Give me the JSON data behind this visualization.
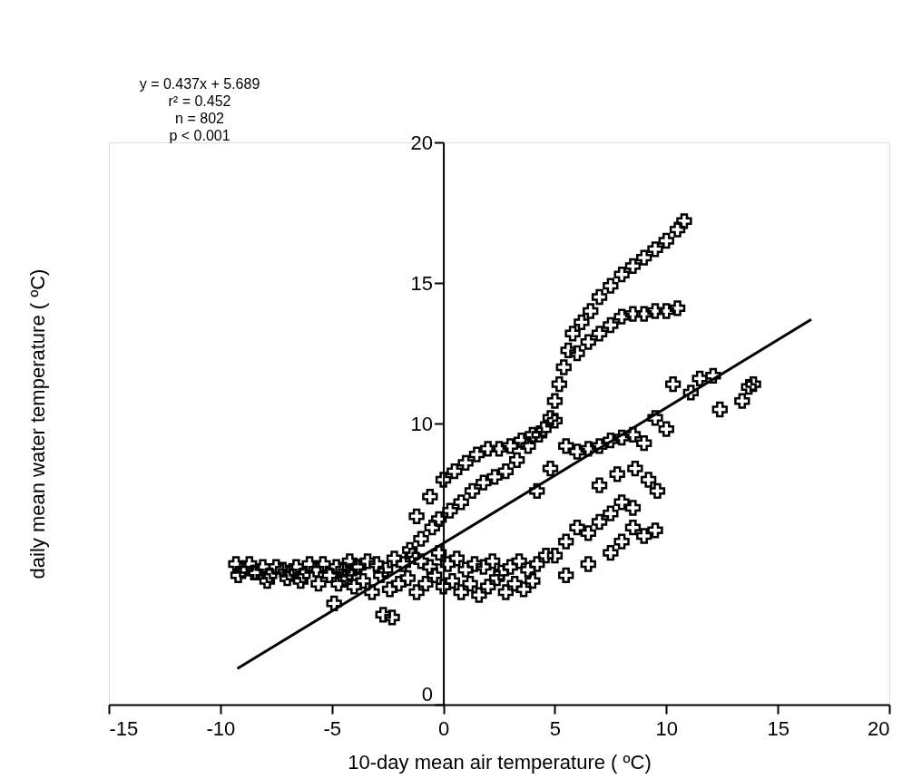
{
  "chart_data": {
    "type": "scatter",
    "xlabel": "10-day mean air temperature ( ºC)",
    "ylabel": "daily mean water temperature ( ºC)",
    "xlim": [
      -15,
      20
    ],
    "ylim": [
      0,
      20
    ],
    "xticks": [
      -15,
      -10,
      -5,
      0,
      5,
      10,
      15,
      20
    ],
    "yticks": [
      {
        "value": 0,
        "label": "0"
      },
      {
        "value": 5,
        "label": null
      },
      {
        "value": 15,
        "label": "15"
      },
      {
        "value": 10,
        "label": "10"
      },
      {
        "value": 20,
        "label": "20"
      }
    ],
    "grid": false,
    "annotations": [
      "y = 0.437x + 5.689",
      "r² = 0.452",
      "n = 802",
      "p < 0.001"
    ],
    "series": [
      {
        "color": "#000000",
        "marker": "cross",
        "x": [
          -9.3,
          -9.0,
          -8.7,
          -8.4,
          -8.1,
          -7.8,
          -7.5,
          -7.2,
          -6.9,
          -6.6,
          -6.3,
          -6.0,
          -5.7,
          -5.4,
          -5.1,
          -4.8,
          -4.5,
          -4.2,
          -3.9,
          -9.2,
          -8.5,
          -7.9,
          -7.0,
          -6.4,
          -5.6,
          -4.9,
          -4.7,
          -4.4,
          -4.0,
          -3.6,
          -3.2,
          -2.8,
          -2.4,
          -2.0,
          -1.6,
          -1.2,
          -0.8,
          -0.4,
          0.0,
          0.4,
          0.8,
          1.2,
          1.6,
          2.0,
          2.4,
          2.8,
          3.2,
          3.6,
          4.0,
          -4.2,
          -3.8,
          -3.4,
          -3.0,
          -2.6,
          -2.2,
          -1.8,
          -1.4,
          -1.0,
          -0.6,
          -0.2,
          0.2,
          0.6,
          1.0,
          1.4,
          1.8,
          2.2,
          2.6,
          3.0,
          3.4,
          3.8,
          4.2,
          4.6,
          -2.7,
          -2.3,
          -1.5,
          -1.0,
          -0.5,
          -0.2,
          0.3,
          0.8,
          1.3,
          1.8,
          2.3,
          2.8,
          3.3,
          3.8,
          4.3,
          4.8,
          5.0,
          5.2,
          5.4,
          5.6,
          5.8,
          6.2,
          6.6,
          7.0,
          7.5,
          8.0,
          8.5,
          9.0,
          9.5,
          10.0,
          10.5,
          10.8,
          6.0,
          6.5,
          7.0,
          7.5,
          8.0,
          8.5,
          9.0,
          9.5,
          10.0,
          10.5,
          -1.2,
          -0.6,
          0.0,
          0.5,
          1.0,
          1.5,
          2.0,
          2.5,
          3.0,
          3.5,
          4.0,
          4.5,
          5.0,
          4.2,
          4.8,
          5.5,
          6.0,
          6.5,
          7.0,
          7.5,
          8.0,
          8.5,
          9.0,
          9.5,
          10.0,
          10.3,
          11.1,
          11.5,
          12.1,
          12.4,
          13.4,
          13.7,
          13.9,
          5.0,
          5.5,
          6.0,
          6.5,
          7.0,
          7.5,
          8.0,
          8.5,
          5.5,
          6.5,
          7.5,
          8.0,
          8.5,
          9.0,
          9.5,
          7.0,
          7.8,
          8.6,
          9.2,
          9.6
        ],
        "values": [
          5.0,
          4.8,
          5.0,
          4.7,
          4.9,
          4.6,
          4.9,
          4.8,
          4.7,
          4.9,
          4.6,
          5.0,
          4.8,
          5.0,
          4.6,
          4.9,
          4.8,
          5.1,
          4.9,
          4.6,
          4.7,
          4.4,
          4.5,
          4.4,
          4.3,
          3.6,
          4.3,
          4.5,
          4.2,
          4.4,
          4.0,
          4.6,
          4.1,
          4.3,
          4.5,
          4.0,
          4.3,
          4.6,
          4.2,
          4.4,
          4.0,
          4.3,
          3.9,
          4.2,
          4.5,
          4.0,
          4.3,
          4.1,
          4.4,
          4.7,
          4.9,
          5.1,
          5.0,
          4.8,
          5.2,
          5.0,
          5.3,
          5.1,
          4.9,
          5.4,
          5.0,
          5.2,
          4.8,
          5.0,
          4.9,
          5.1,
          4.7,
          4.9,
          5.1,
          4.8,
          5.0,
          5.3,
          3.2,
          3.1,
          5.5,
          5.9,
          6.3,
          6.6,
          6.9,
          7.2,
          7.6,
          7.9,
          8.1,
          8.3,
          8.7,
          9.2,
          9.6,
          10.2,
          10.8,
          11.4,
          12.0,
          12.6,
          13.2,
          13.6,
          14.0,
          14.5,
          14.9,
          15.3,
          15.6,
          15.9,
          16.2,
          16.5,
          16.9,
          17.2,
          12.5,
          12.9,
          13.2,
          13.5,
          13.8,
          13.9,
          13.9,
          14.0,
          14.0,
          14.1,
          6.7,
          7.4,
          8.0,
          8.3,
          8.6,
          8.9,
          9.1,
          9.1,
          9.2,
          9.4,
          9.6,
          9.8,
          10.1,
          7.6,
          8.4,
          9.2,
          9.0,
          9.1,
          9.2,
          9.4,
          9.5,
          9.6,
          9.3,
          10.2,
          9.8,
          11.4,
          11.1,
          11.6,
          11.7,
          10.5,
          10.8,
          11.3,
          11.4,
          5.3,
          5.8,
          6.3,
          6.1,
          6.5,
          6.8,
          7.2,
          7.0,
          4.6,
          5.0,
          5.4,
          5.8,
          6.3,
          6.0,
          6.2,
          7.8,
          8.2,
          8.4,
          8.0,
          7.6
        ]
      },
      {
        "type": "line",
        "color": "#000000",
        "x": [
          -9.24,
          16.5
        ],
        "values": [
          1.28,
          13.7
        ]
      }
    ]
  }
}
